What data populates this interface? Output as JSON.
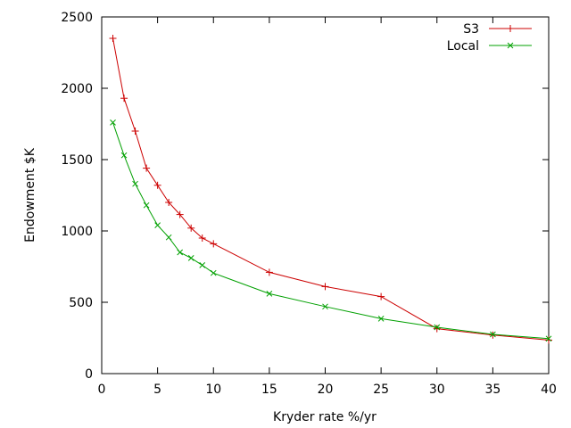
{
  "chart_data": {
    "type": "line",
    "title": "",
    "xlabel": "Kryder rate %/yr",
    "ylabel": "Endowment $K",
    "xlim": [
      0,
      40
    ],
    "ylim": [
      0,
      2500
    ],
    "xticks": [
      0,
      5,
      10,
      15,
      20,
      25,
      30,
      35,
      40
    ],
    "yticks": [
      0,
      500,
      1000,
      1500,
      2000,
      2500
    ],
    "grid": false,
    "legend_position": "top-right",
    "series": [
      {
        "name": "S3",
        "color": "#cc0000",
        "marker": "plus",
        "x": [
          1,
          2,
          3,
          4,
          5,
          6,
          7,
          8,
          9,
          10,
          15,
          20,
          25,
          30,
          35,
          40
        ],
        "y": [
          2350,
          1930,
          1700,
          1440,
          1320,
          1200,
          1115,
          1020,
          950,
          910,
          710,
          610,
          540,
          315,
          270,
          235
        ]
      },
      {
        "name": "Local",
        "color": "#00a000",
        "marker": "x",
        "x": [
          1,
          2,
          3,
          4,
          5,
          6,
          7,
          8,
          9,
          10,
          15,
          20,
          25,
          30,
          35,
          40
        ],
        "y": [
          1760,
          1530,
          1330,
          1180,
          1040,
          955,
          850,
          810,
          760,
          705,
          560,
          470,
          385,
          325,
          275,
          245
        ]
      }
    ]
  }
}
